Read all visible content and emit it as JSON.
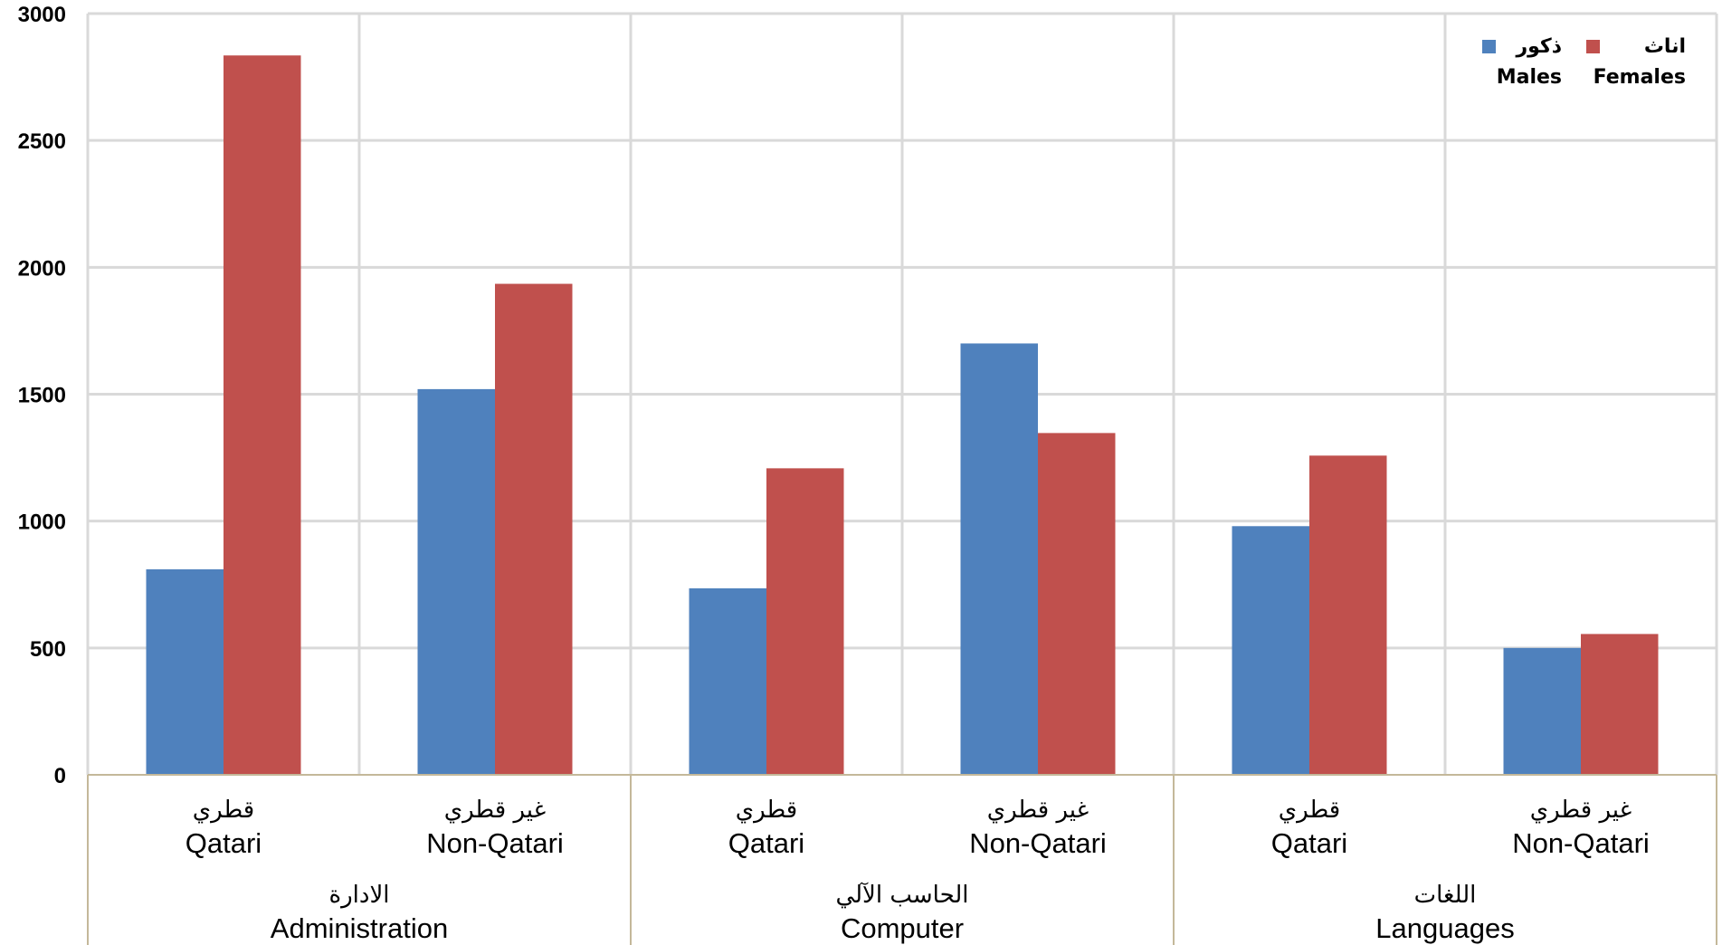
{
  "chart_data": {
    "type": "bar",
    "title": "",
    "xlabel": "",
    "ylabel": "",
    "ylim": [
      0,
      3000
    ],
    "yticks": [
      0,
      500,
      1000,
      1500,
      2000,
      2500,
      3000
    ],
    "grid": true,
    "legend_position": "top-right",
    "groups": [
      {
        "label_ar": "الادارة",
        "label_en": "Administration"
      },
      {
        "label_ar": "الحاسب الآلي",
        "label_en": "Computer"
      },
      {
        "label_ar": "اللغات",
        "label_en": "Languages"
      }
    ],
    "categories": [
      {
        "label_ar": "قطري",
        "label_en": "Qatari",
        "group": 0
      },
      {
        "label_ar": "غير قطري",
        "label_en": "Non-Qatari",
        "group": 0
      },
      {
        "label_ar": "قطري",
        "label_en": "Qatari",
        "group": 1
      },
      {
        "label_ar": "غير قطري",
        "label_en": "Non-Qatari",
        "group": 1
      },
      {
        "label_ar": "قطري",
        "label_en": "Qatari",
        "group": 2
      },
      {
        "label_ar": "غير قطري",
        "label_en": "Non-Qatari",
        "group": 2
      }
    ],
    "series": [
      {
        "name_ar": "ذكور",
        "name_en": "Males",
        "color": "#4f81bd",
        "values": [
          810,
          1520,
          735,
          1700,
          980,
          500
        ]
      },
      {
        "name_ar": "اناث",
        "name_en": "Females",
        "color": "#c0504d",
        "values": [
          2835,
          1935,
          1208,
          1347,
          1258,
          555
        ]
      }
    ],
    "colors": {
      "grid": "#d9d9d9",
      "axis": "#c4b89a",
      "background": "#ffffff"
    }
  }
}
